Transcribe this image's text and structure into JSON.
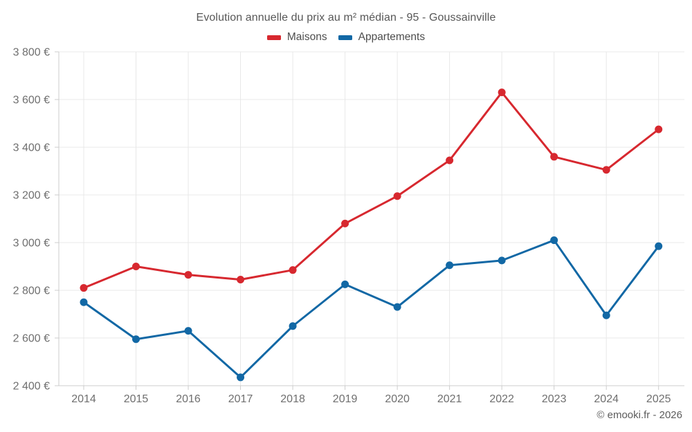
{
  "header": {
    "title": "Evolution annuelle du prix au m² médian - 95 - Goussainville"
  },
  "legend": [
    {
      "label": "Maisons",
      "color": "#d7282f"
    },
    {
      "label": "Appartements",
      "color": "#1268a5"
    }
  ],
  "footer": {
    "copyright": "© emooki.fr - 2026"
  },
  "colors": {
    "grid": "#e8e8e8",
    "axis": "#cccccc",
    "tick_text": "#6f6f6f",
    "background": "#ffffff",
    "maisons": "#d7282f",
    "appartements": "#1268a5"
  },
  "chart_data": {
    "type": "line",
    "title": "Evolution annuelle du prix au m² médian - 95 - Goussainville",
    "xlabel": "",
    "ylabel": "",
    "x": [
      2014,
      2015,
      2016,
      2017,
      2018,
      2019,
      2020,
      2021,
      2022,
      2023,
      2024,
      2025
    ],
    "series": [
      {
        "name": "Maisons",
        "color": "#d7282f",
        "values": [
          2810,
          2900,
          2865,
          2845,
          2885,
          3080,
          3195,
          3345,
          3630,
          3360,
          3305,
          3475
        ]
      },
      {
        "name": "Appartements",
        "color": "#1268a5",
        "values": [
          2750,
          2595,
          2630,
          2435,
          2650,
          2825,
          2730,
          2905,
          2925,
          3010,
          2695,
          2985
        ]
      }
    ],
    "ylim": [
      2400,
      3800
    ],
    "ytick_step": 200,
    "ytick_labels": [
      "2 400 €",
      "2 600 €",
      "2 800 €",
      "3 000 €",
      "3 200 €",
      "3 400 €",
      "3 600 €",
      "3 800 €"
    ],
    "grid": true,
    "legend_position": "top",
    "marker": "circle",
    "currency": "€"
  }
}
